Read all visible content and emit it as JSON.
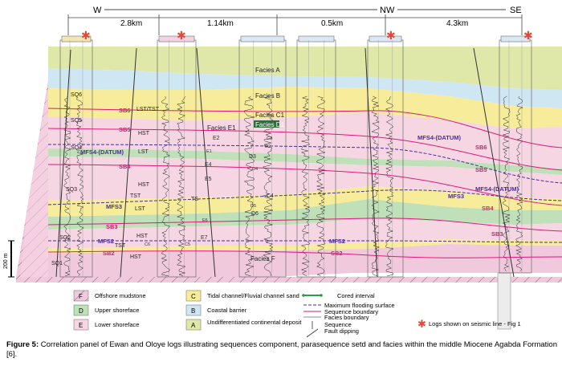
{
  "header": {
    "dir_w": "W",
    "dir_nw": "NW",
    "dir_se": "SE",
    "distances": [
      "2.8km",
      "1.14km",
      "0.5km",
      "4.3km"
    ]
  },
  "facies_labels": [
    "Facies A",
    "Facies B",
    "Facies C1",
    "Facies D1",
    "Facies E1",
    "Facies F"
  ],
  "sub_labels": [
    "E2",
    "D3",
    "E4",
    "E5",
    "C4",
    "D6",
    "E7",
    "E1",
    "D2",
    "C3",
    "D4",
    "D5",
    "E6",
    "C5",
    "C6"
  ],
  "sequences_left": [
    "SQ6",
    "SQ5",
    "SQ4",
    "SQ3",
    "SQ2",
    "SQ1"
  ],
  "tracts": [
    "LST/TST",
    "HST",
    "LST",
    "HST",
    "TST",
    "LST",
    "HST",
    "TST",
    "HST",
    "TS"
  ],
  "surfaces": {
    "left": [
      "SB6",
      "SB5",
      "MFS4-(DATUM)",
      "SB4",
      "MFS3",
      "SB3",
      "MFS2",
      "SB2"
    ],
    "mid": [
      "MFS2",
      "SB2"
    ],
    "right": [
      "MFS4-(DATUM)",
      "SB6",
      "SB5",
      "MFS4-(DATUM)",
      "MFS3",
      "SB4",
      "SB3"
    ]
  },
  "scale_bar": "200 m",
  "legend": {
    "facies": [
      {
        "code": "F",
        "label": "Offshore mudstone",
        "color": "#f1c9dc"
      },
      {
        "code": "D",
        "label": "Upper shoreface",
        "color": "#bfe0b8"
      },
      {
        "code": "E",
        "label": "Lower shoreface",
        "color": "#f7d6e4"
      },
      {
        "code": "C",
        "label": "Tidal channel/Fluvial channel sand",
        "color": "#f7ec9a"
      },
      {
        "code": "B",
        "label": "Coastal barrier",
        "color": "#cfe6f3"
      },
      {
        "code": "A",
        "label": "Undifferentiated continental deposit",
        "color": "#dfe7a9"
      }
    ],
    "symbols": [
      "Cored interval",
      "Maximum flooding surface",
      "Sequence boundary",
      "Facies boundary",
      "Sequence",
      "Fault dipping"
    ],
    "star_note": "Logs shown on  seismic line - Fig 1"
  },
  "caption": {
    "bold": "Figure 5:",
    "text": " Correlation panel of Ewan and Oloye logs illustrating sequences component, parasequence setd and facies within the middle Miocene Agabda Formation [6]."
  },
  "colors": {
    "facies_a": "#dfe7a9",
    "facies_b": "#cfe6f3",
    "facies_c": "#f7ec9a",
    "facies_d": "#bfe0b8",
    "facies_e": "#f7d6e4",
    "facies_f": "#f1c9dc",
    "sb": "#e0197a",
    "mfs": "#4a2c9a",
    "fault": "#333333"
  }
}
